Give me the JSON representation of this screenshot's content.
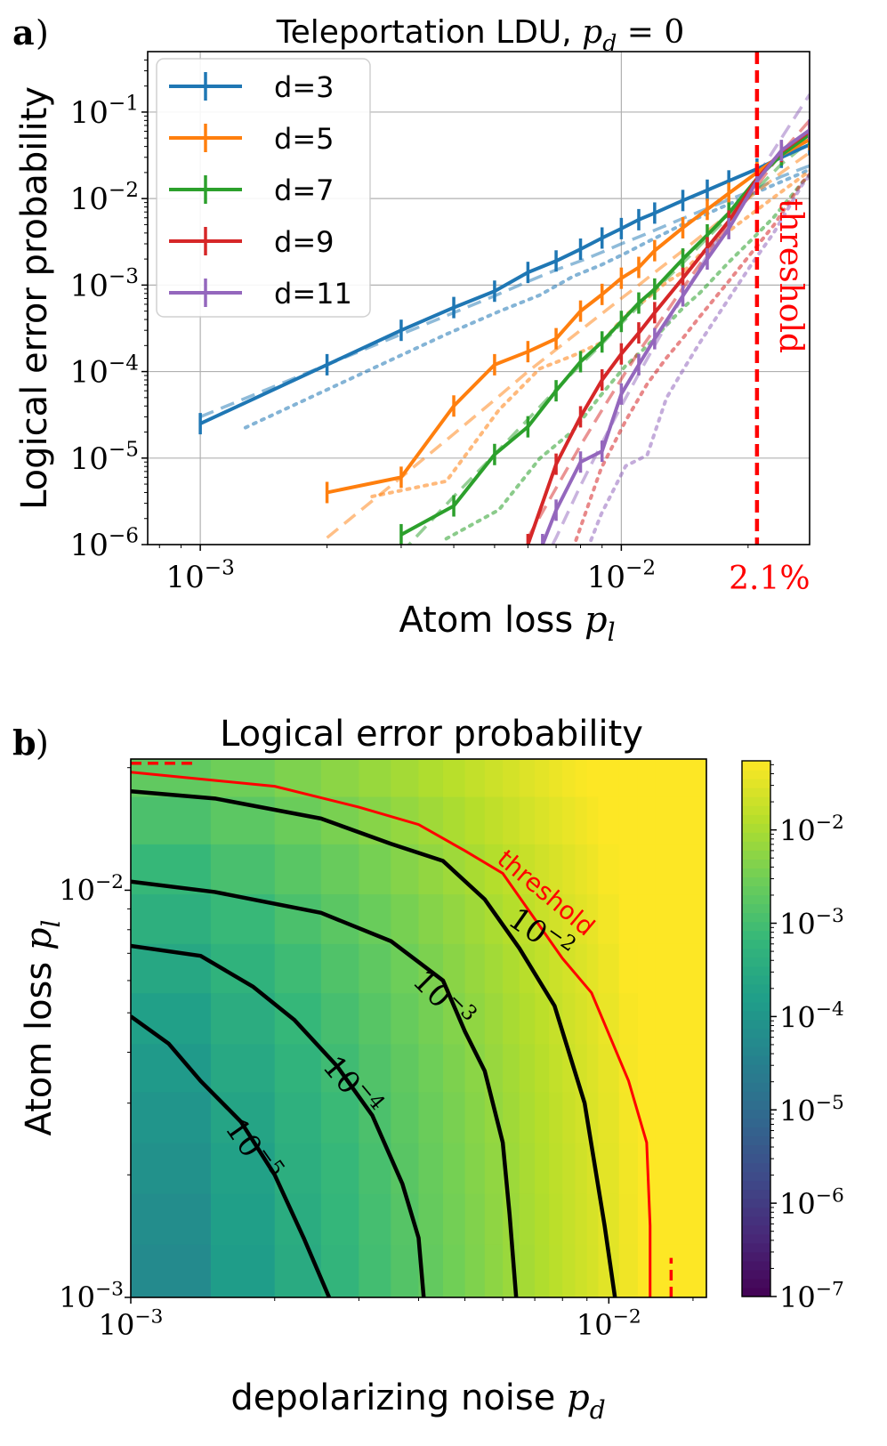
{
  "figure": {
    "panel_a_label": "a",
    "panel_b_label": "b",
    "paren": ")"
  },
  "chart_data": [
    {
      "type": "line",
      "panel": "a",
      "title_text": "Teleportation LDU, ",
      "title_math": "p",
      "title_math_sub": "d",
      "title_math_rest": " = 0",
      "xlabel_text": "Atom loss ",
      "xlabel_math": "p",
      "xlabel_sub": "l",
      "ylabel": "Logical error probability",
      "xscale": "log",
      "yscale": "log",
      "xlim": [
        0.00075,
        0.028
      ],
      "ylim": [
        1e-06,
        0.5
      ],
      "grid": true,
      "x_ticks": [
        {
          "value": 0.001,
          "label": "10",
          "exp": "−3"
        },
        {
          "value": 0.01,
          "label": "10",
          "exp": "−2"
        }
      ],
      "y_ticks": [
        {
          "value": 1e-06,
          "label": "10",
          "exp": "−6"
        },
        {
          "value": 1e-05,
          "label": "10",
          "exp": "−5"
        },
        {
          "value": 0.0001,
          "label": "10",
          "exp": "−4"
        },
        {
          "value": 0.001,
          "label": "10",
          "exp": "−3"
        },
        {
          "value": 0.01,
          "label": "10",
          "exp": "−2"
        },
        {
          "value": 0.1,
          "label": "10",
          "exp": "−1"
        }
      ],
      "threshold": {
        "x": 0.021,
        "label": "threshold",
        "tick_label": "2.1%",
        "color": "#ff0000"
      },
      "legend_position": "top-left",
      "series": [
        {
          "name": "d=3",
          "color": "#1f77b4",
          "x": [
            0.001,
            0.002,
            0.003,
            0.004,
            0.005,
            0.006,
            0.007,
            0.008,
            0.009,
            0.01,
            0.011,
            0.012,
            0.014,
            0.016,
            0.018,
            0.021,
            0.024,
            0.028
          ],
          "y": [
            2.5e-05,
            0.00012,
            0.0003,
            0.00055,
            0.00085,
            0.0014,
            0.0019,
            0.0026,
            0.0035,
            0.0045,
            0.0057,
            0.0068,
            0.0095,
            0.0125,
            0.016,
            0.022,
            0.03,
            0.042
          ],
          "fit_y": [
            3e-05,
            0.00012,
            0.00027,
            0.00048,
            0.00075,
            0.0011,
            0.0015,
            0.0019,
            0.0024,
            0.003,
            0.0036,
            0.0043,
            0.0059,
            0.0077,
            0.0097,
            0.013,
            0.018,
            0.024
          ]
        },
        {
          "name": "d=5",
          "color": "#ff7f0e",
          "x": [
            0.002,
            0.003,
            0.004,
            0.005,
            0.006,
            0.007,
            0.008,
            0.009,
            0.01,
            0.011,
            0.012,
            0.014,
            0.016,
            0.018,
            0.021,
            0.024,
            0.028
          ],
          "y": [
            4e-06,
            6e-06,
            4e-05,
            0.00012,
            0.00017,
            0.00024,
            0.0005,
            0.00078,
            0.0012,
            0.0016,
            0.0025,
            0.0046,
            0.0075,
            0.0115,
            0.02,
            0.032,
            0.048
          ],
          "fit_y": [
            1.2e-06,
            6e-06,
            1.9e-05,
            4.7e-05,
            0.0001,
            0.00018,
            0.0003,
            0.00047,
            0.0007,
            0.001,
            0.0014,
            0.0025,
            0.0042,
            0.0067,
            0.012,
            0.02,
            0.034
          ]
        },
        {
          "name": "d=7",
          "color": "#2ca02c",
          "x": [
            0.003,
            0.004,
            0.005,
            0.006,
            0.007,
            0.008,
            0.009,
            0.01,
            0.011,
            0.012,
            0.014,
            0.016,
            0.018,
            0.021,
            0.024,
            0.028
          ],
          "y": [
            1.3e-06,
            2.8e-06,
            1.1e-05,
            2.3e-05,
            6e-05,
            0.00013,
            0.00022,
            0.00038,
            0.00062,
            0.0009,
            0.002,
            0.0038,
            0.0068,
            0.017,
            0.032,
            0.055
          ],
          "fit_y": [
            8e-07,
            3.6e-06,
            1.1e-05,
            2.8e-05,
            6.2e-05,
            0.00012,
            0.00021,
            0.00036,
            0.00057,
            0.00087,
            0.0018,
            0.0035,
            0.0062,
            0.013,
            0.025,
            0.046
          ]
        },
        {
          "name": "d=9",
          "color": "#d62728",
          "x": [
            0.006,
            0.007,
            0.008,
            0.009,
            0.01,
            0.011,
            0.012,
            0.014,
            0.016,
            0.018,
            0.021,
            0.024,
            0.028
          ],
          "y": [
            1e-06,
            8.5e-06,
            3e-05,
            8e-05,
            0.00016,
            0.00028,
            0.00048,
            0.0012,
            0.0027,
            0.0055,
            0.017,
            0.035,
            0.06
          ],
          "fit_y": [
            1.2e-06,
            4.5e-06,
            1.4e-05,
            3.6e-05,
            8.2e-05,
            0.00017,
            0.00031,
            0.00092,
            0.0023,
            0.0051,
            0.014,
            0.034,
            0.08
          ]
        },
        {
          "name": "d=11",
          "color": "#9467bd",
          "x": [
            0.0065,
            0.007,
            0.008,
            0.009,
            0.01,
            0.011,
            0.012,
            0.014,
            0.016,
            0.018,
            0.021,
            0.024,
            0.028
          ],
          "y": [
            1e-06,
            2.5e-06,
            9e-06,
            1.2e-05,
            5.5e-05,
            0.00012,
            0.00024,
            0.00075,
            0.002,
            0.0045,
            0.016,
            0.036,
            0.062
          ],
          "fit_y": [
            6e-07,
            1.2e-06,
            4.8e-06,
            1.5e-05,
            4e-05,
            9.4e-05,
            0.0002,
            0.00074,
            0.0022,
            0.0056,
            0.018,
            0.05,
            0.16
          ]
        }
      ]
    },
    {
      "type": "heatmap",
      "panel": "b",
      "title": "Logical error probability",
      "xlabel_text": "depolarizing noise ",
      "xlabel_math": "p",
      "xlabel_sub": "d",
      "ylabel_text": "Atom loss ",
      "ylabel_math": "p",
      "ylabel_sub": "l",
      "xscale": "log",
      "yscale": "log",
      "xlim": [
        0.001,
        0.016
      ],
      "ylim": [
        0.001,
        0.021
      ],
      "x_ticks": [
        {
          "value": 0.001,
          "label": "10",
          "exp": "−3"
        },
        {
          "value": 0.01,
          "label": "10",
          "exp": "−2"
        }
      ],
      "y_ticks": [
        {
          "value": 0.001,
          "label": "10",
          "exp": "−3"
        },
        {
          "value": 0.01,
          "label": "10",
          "exp": "−2"
        }
      ],
      "colorbar": {
        "scale": "log",
        "min": 1e-07,
        "max": 0.055,
        "colormap": "viridis",
        "ticks": [
          {
            "value": 1e-07,
            "label": "10",
            "exp": "−7"
          },
          {
            "value": 1e-06,
            "label": "10",
            "exp": "−6"
          },
          {
            "value": 1e-05,
            "label": "10",
            "exp": "−5"
          },
          {
            "value": 0.0001,
            "label": "10",
            "exp": "−4"
          },
          {
            "value": 0.001,
            "label": "10",
            "exp": "−3"
          },
          {
            "value": 0.01,
            "label": "10",
            "exp": "−2"
          }
        ]
      },
      "x_edges": [
        0.001,
        0.00147,
        0.002,
        0.0025,
        0.003,
        0.0035,
        0.004,
        0.0045,
        0.005,
        0.0055,
        0.006,
        0.0065,
        0.007,
        0.0075,
        0.008,
        0.0085,
        0.009,
        0.0095,
        0.0105,
        0.0115,
        0.0125,
        0.016
      ],
      "y_edges": [
        0.001,
        0.00135,
        0.0018,
        0.0024,
        0.0032,
        0.0042,
        0.0056,
        0.0074,
        0.0098,
        0.013,
        0.017,
        0.021
      ],
      "z_model": {
        "a": 0.2,
        "b": 0.5,
        "c": 2.0,
        "d": 1.5,
        "max": 0.05
      },
      "contours": [
        {
          "label": "10",
          "exp": "−2",
          "color": "#000000",
          "points": [
            [
              0.001,
              0.0175
            ],
            [
              0.0015,
              0.0168
            ],
            [
              0.0025,
              0.015
            ],
            [
              0.0035,
              0.013
            ],
            [
              0.0045,
              0.0118
            ],
            [
              0.0055,
              0.0095
            ],
            [
              0.0065,
              0.0072
            ],
            [
              0.0077,
              0.0052
            ],
            [
              0.0089,
              0.003
            ],
            [
              0.0098,
              0.0015
            ],
            [
              0.0103,
              0.001
            ]
          ],
          "label_at": [
            0.0072,
            0.0078
          ],
          "label_angle": 35
        },
        {
          "label": "10",
          "exp": "−3",
          "color": "#000000",
          "points": [
            [
              0.001,
              0.0105
            ],
            [
              0.0015,
              0.0099
            ],
            [
              0.0025,
              0.0088
            ],
            [
              0.0035,
              0.0075
            ],
            [
              0.0045,
              0.006
            ],
            [
              0.005,
              0.0045
            ],
            [
              0.0055,
              0.0036
            ],
            [
              0.006,
              0.0024
            ],
            [
              0.0062,
              0.0016
            ],
            [
              0.0064,
              0.001
            ]
          ],
          "label_at": [
            0.0045,
            0.0054
          ],
          "label_angle": 45
        },
        {
          "label": "10",
          "exp": "−4",
          "color": "#000000",
          "points": [
            [
              0.001,
              0.0073
            ],
            [
              0.0014,
              0.0069
            ],
            [
              0.0018,
              0.0058
            ],
            [
              0.0022,
              0.0048
            ],
            [
              0.0027,
              0.0037
            ],
            [
              0.0032,
              0.0028
            ],
            [
              0.0037,
              0.0019
            ],
            [
              0.004,
              0.0014
            ],
            [
              0.0041,
              0.001
            ]
          ],
          "label_at": [
            0.0029,
            0.0033
          ],
          "label_angle": 50
        },
        {
          "label": "10",
          "exp": "−5",
          "color": "#000000",
          "points": [
            [
              0.001,
              0.0049
            ],
            [
              0.0012,
              0.0042
            ],
            [
              0.0014,
              0.0034
            ],
            [
              0.0017,
              0.0027
            ],
            [
              0.002,
              0.002
            ],
            [
              0.0023,
              0.0014
            ],
            [
              0.0026,
              0.001
            ]
          ],
          "label_at": [
            0.0018,
            0.0023
          ],
          "label_angle": 55
        }
      ],
      "threshold_curve": {
        "label": "threshold",
        "color": "#ff0000",
        "points": [
          [
            0.001,
            0.0195
          ],
          [
            0.002,
            0.018
          ],
          [
            0.003,
            0.016
          ],
          [
            0.004,
            0.0145
          ],
          [
            0.005,
            0.0125
          ],
          [
            0.006,
            0.011
          ],
          [
            0.007,
            0.0085
          ],
          [
            0.008,
            0.0068
          ],
          [
            0.0092,
            0.0056
          ],
          [
            0.011,
            0.0034
          ],
          [
            0.012,
            0.0024
          ],
          [
            0.0122,
            0.0015
          ],
          [
            0.0122,
            0.001
          ]
        ],
        "label_at": [
          0.0072,
          0.0095
        ],
        "label_angle": 40
      },
      "threshold_markers": {
        "color": "#ff0000",
        "pl_dash": [
          [
            0.001,
            0.0205
          ],
          [
            0.00135,
            0.0205
          ]
        ],
        "pd_dash": [
          [
            0.0135,
            0.001
          ],
          [
            0.0135,
            0.00125
          ]
        ]
      }
    }
  ]
}
